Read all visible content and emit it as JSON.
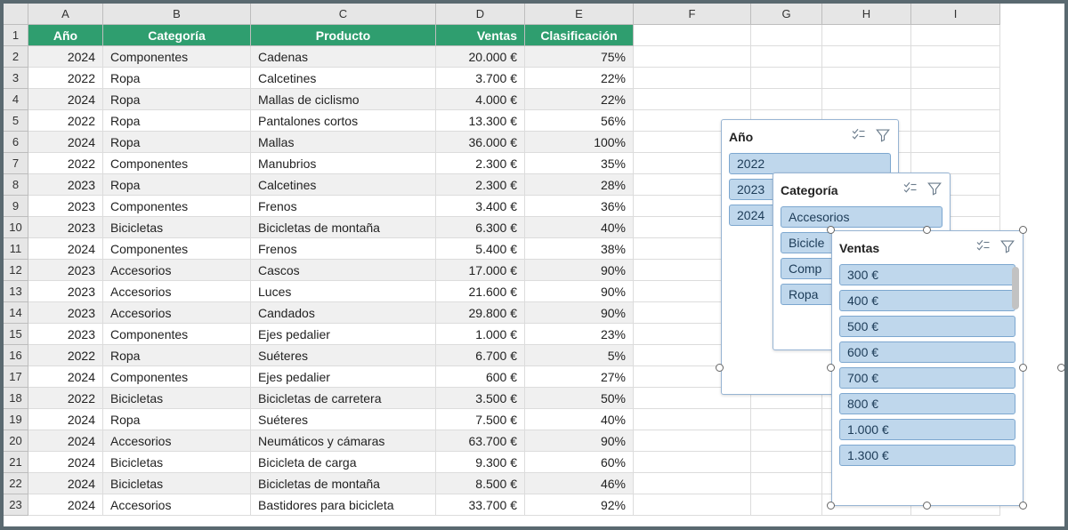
{
  "columns": [
    "A",
    "B",
    "C",
    "D",
    "E",
    "F",
    "G",
    "H",
    "I"
  ],
  "headers": {
    "ano": "Año",
    "categoria": "Categoría",
    "producto": "Producto",
    "ventas": "Ventas",
    "clasif": "Clasificación"
  },
  "rows": [
    {
      "n": 2,
      "ano": "2024",
      "cat": "Componentes",
      "prod": "Cadenas",
      "ventas": "20.000 €",
      "clasif": "75%",
      "band": true
    },
    {
      "n": 3,
      "ano": "2022",
      "cat": "Ropa",
      "prod": "Calcetines",
      "ventas": "3.700 €",
      "clasif": "22%",
      "band": false
    },
    {
      "n": 4,
      "ano": "2024",
      "cat": "Ropa",
      "prod": "Mallas de ciclismo",
      "ventas": "4.000 €",
      "clasif": "22%",
      "band": true
    },
    {
      "n": 5,
      "ano": "2022",
      "cat": "Ropa",
      "prod": "Pantalones cortos",
      "ventas": "13.300 €",
      "clasif": "56%",
      "band": false
    },
    {
      "n": 6,
      "ano": "2024",
      "cat": "Ropa",
      "prod": "Mallas",
      "ventas": "36.000 €",
      "clasif": "100%",
      "band": true
    },
    {
      "n": 7,
      "ano": "2022",
      "cat": "Componentes",
      "prod": "Manubrios",
      "ventas": "2.300 €",
      "clasif": "35%",
      "band": false
    },
    {
      "n": 8,
      "ano": "2023",
      "cat": "Ropa",
      "prod": "Calcetines",
      "ventas": "2.300 €",
      "clasif": "28%",
      "band": true
    },
    {
      "n": 9,
      "ano": "2023",
      "cat": "Componentes",
      "prod": "Frenos",
      "ventas": "3.400 €",
      "clasif": "36%",
      "band": false
    },
    {
      "n": 10,
      "ano": "2023",
      "cat": "Bicicletas",
      "prod": "Bicicletas de montaña",
      "ventas": "6.300 €",
      "clasif": "40%",
      "band": true
    },
    {
      "n": 11,
      "ano": "2024",
      "cat": "Componentes",
      "prod": "Frenos",
      "ventas": "5.400 €",
      "clasif": "38%",
      "band": false
    },
    {
      "n": 12,
      "ano": "2023",
      "cat": "Accesorios",
      "prod": "Cascos",
      "ventas": "17.000 €",
      "clasif": "90%",
      "band": true
    },
    {
      "n": 13,
      "ano": "2023",
      "cat": "Accesorios",
      "prod": "Luces",
      "ventas": "21.600 €",
      "clasif": "90%",
      "band": false
    },
    {
      "n": 14,
      "ano": "2023",
      "cat": "Accesorios",
      "prod": "Candados",
      "ventas": "29.800 €",
      "clasif": "90%",
      "band": true
    },
    {
      "n": 15,
      "ano": "2023",
      "cat": "Componentes",
      "prod": "Ejes pedalier",
      "ventas": "1.000 €",
      "clasif": "23%",
      "band": false
    },
    {
      "n": 16,
      "ano": "2022",
      "cat": "Ropa",
      "prod": "Suéteres",
      "ventas": "6.700 €",
      "clasif": "5%",
      "band": true
    },
    {
      "n": 17,
      "ano": "2024",
      "cat": "Componentes",
      "prod": "Ejes pedalier",
      "ventas": "600 €",
      "clasif": "27%",
      "band": false
    },
    {
      "n": 18,
      "ano": "2022",
      "cat": "Bicicletas",
      "prod": "Bicicletas de carretera",
      "ventas": "3.500 €",
      "clasif": "50%",
      "band": true
    },
    {
      "n": 19,
      "ano": "2024",
      "cat": "Ropa",
      "prod": "Suéteres",
      "ventas": "7.500 €",
      "clasif": "40%",
      "band": false
    },
    {
      "n": 20,
      "ano": "2024",
      "cat": "Accesorios",
      "prod": "Neumáticos y cámaras",
      "ventas": "63.700 €",
      "clasif": "90%",
      "band": true
    },
    {
      "n": 21,
      "ano": "2024",
      "cat": "Bicicletas",
      "prod": "Bicicleta de carga",
      "ventas": "9.300 €",
      "clasif": "60%",
      "band": false
    },
    {
      "n": 22,
      "ano": "2024",
      "cat": "Bicicletas",
      "prod": "Bicicletas de montaña",
      "ventas": "8.500 €",
      "clasif": "46%",
      "band": true
    },
    {
      "n": 23,
      "ano": "2024",
      "cat": "Accesorios",
      "prod": "Bastidores para bicicleta",
      "ventas": "33.700 €",
      "clasif": "92%",
      "band": false
    }
  ],
  "slicers": {
    "ano": {
      "title": "Año",
      "items": [
        "2022",
        "2023",
        "2024"
      ]
    },
    "cat": {
      "title": "Categoría",
      "items": [
        "Accesorios",
        "Bicicle",
        "Comp",
        "Ropa"
      ]
    },
    "ventas": {
      "title": "Ventas",
      "items": [
        "300 €",
        "400 €",
        "500 €",
        "600 €",
        "700 €",
        "800 €",
        "1.000 €",
        "1.300 €"
      ]
    }
  },
  "colors": {
    "header_bg": "#2f9e6f",
    "band_bg": "#f0f0f0",
    "slicer_item_bg": "#bfd7ec",
    "slicer_item_border": "#7da7cf"
  }
}
